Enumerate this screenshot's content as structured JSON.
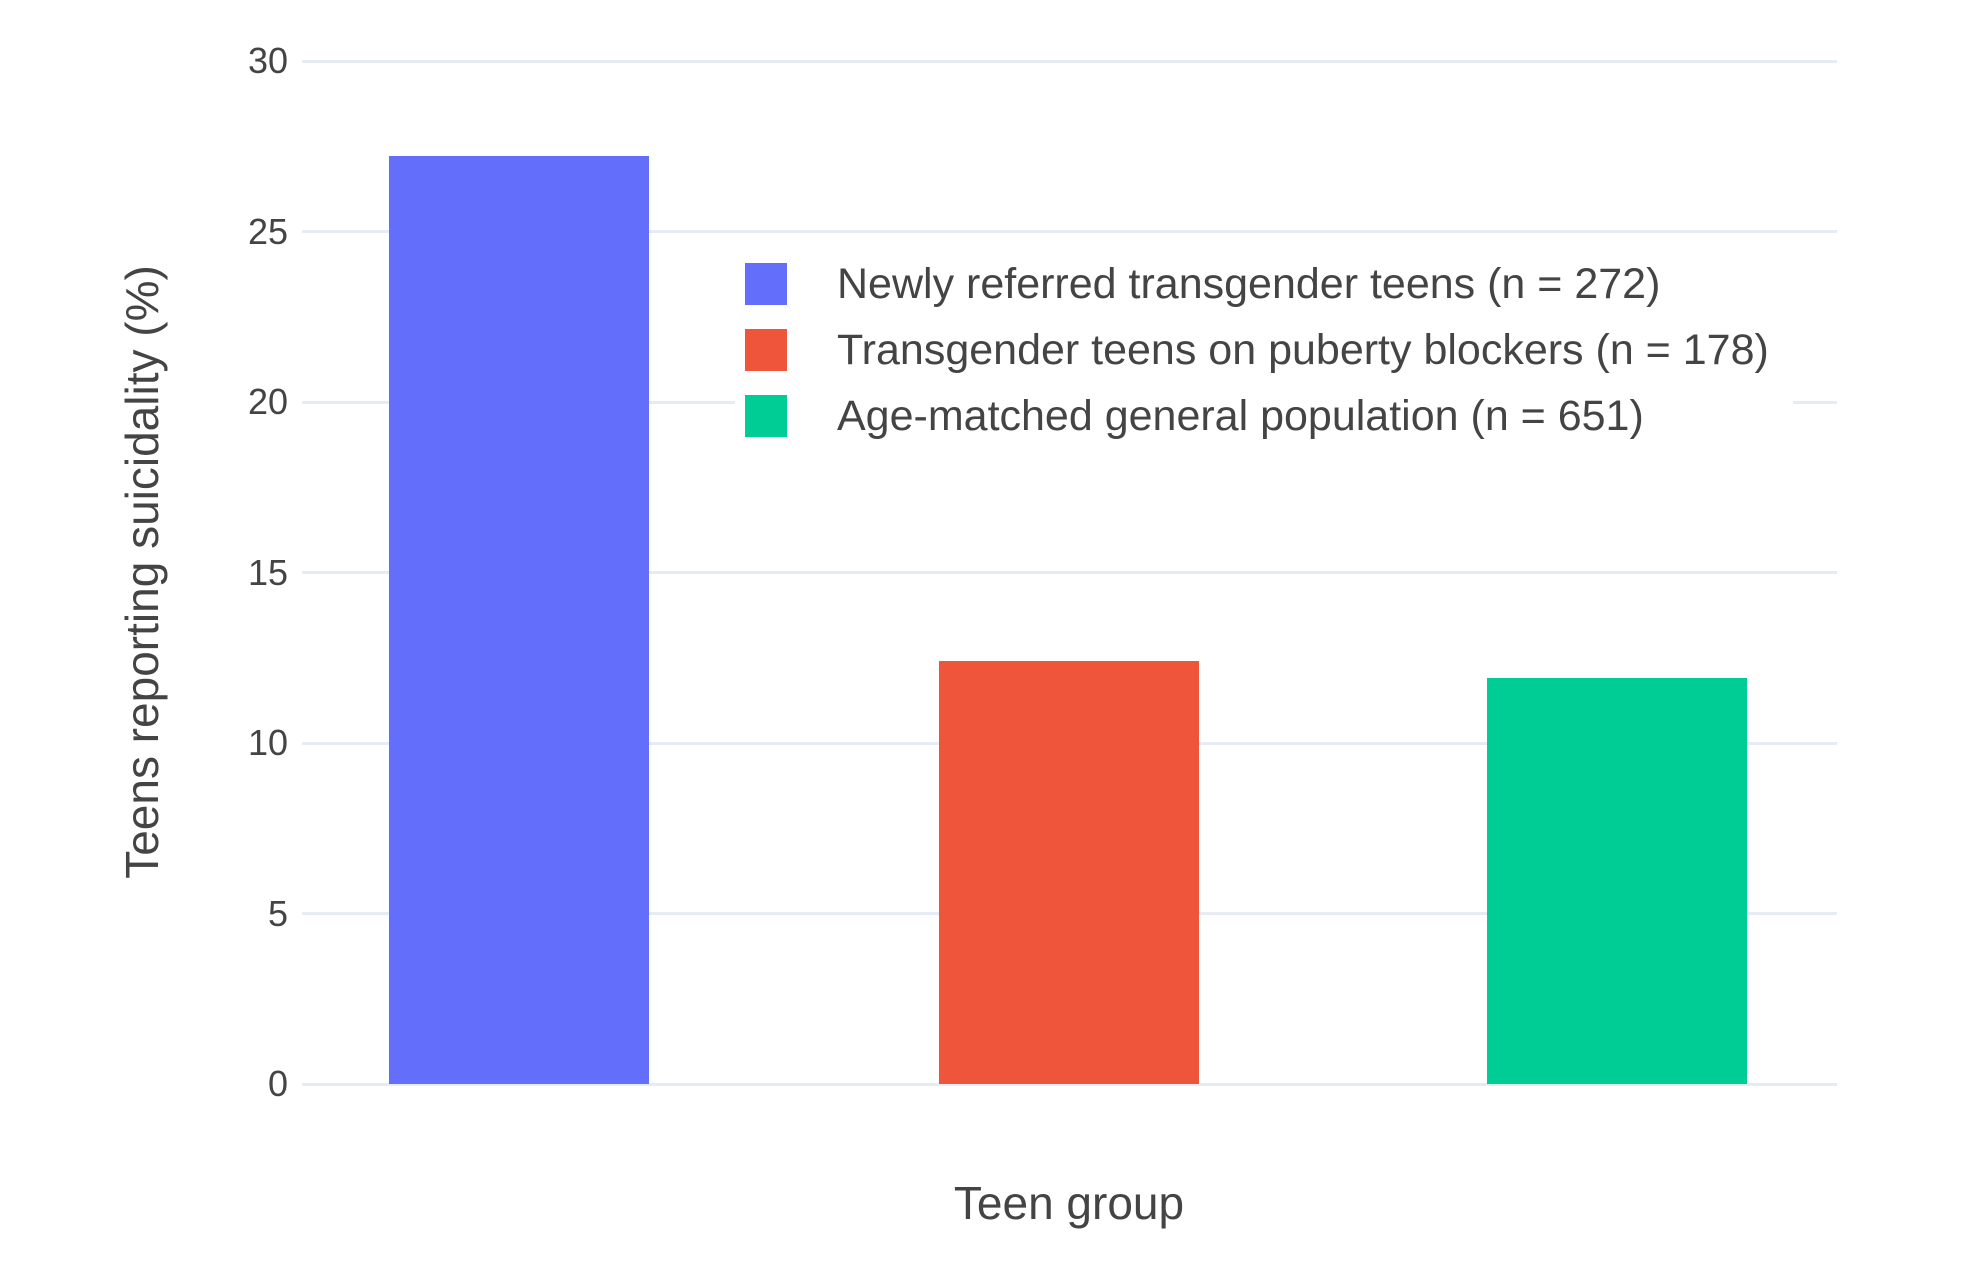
{
  "colors": {
    "background": "#FFFFFF",
    "grid": "#E5ECF6",
    "text": "#444444"
  },
  "chart_data": {
    "type": "bar",
    "title": "",
    "xlabel": "Teen group",
    "ylabel": "Teens reporting suicidality (%)",
    "ylim": [
      0,
      30
    ],
    "yticks": [
      0,
      5,
      10,
      15,
      20,
      25,
      30
    ],
    "grid": true,
    "legend_position": "inside-upper-middle",
    "series": [
      {
        "name": "Newly referred transgender teens (n = 272)",
        "value": 27.2,
        "color": "#636EFA"
      },
      {
        "name": "Transgender teens on puberty blockers (n = 178)",
        "value": 12.4,
        "color": "#EF553B"
      },
      {
        "name": "Age-matched general population (n = 651)",
        "value": 11.9,
        "color": "#00CC96"
      }
    ]
  }
}
